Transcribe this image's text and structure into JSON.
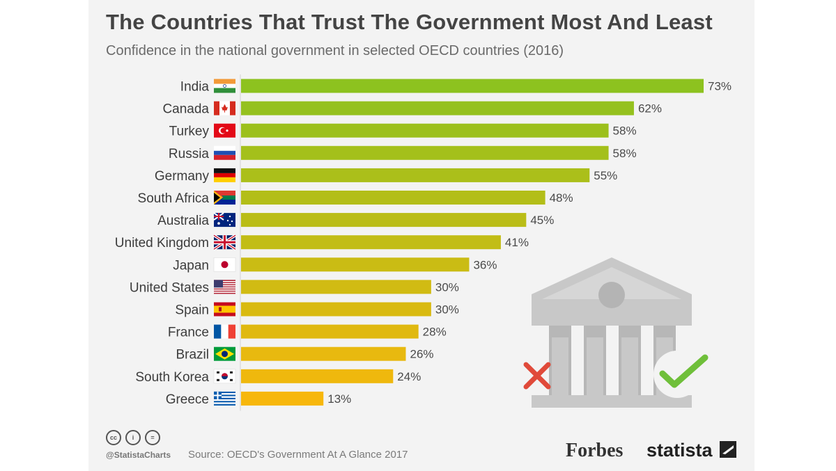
{
  "header": {
    "title": "The Countries That Trust The Government Most And Least",
    "subtitle": "Confidence in the national government in selected OECD countries (2016)"
  },
  "footer": {
    "handle": "@StatistaCharts",
    "source": "Source: OECD's Government At A Glance 2017",
    "cc_icons": [
      "cc",
      "i",
      "="
    ],
    "brand_forbes": "Forbes",
    "brand_statista": "statista"
  },
  "colors": {
    "card_background": "#f3f3f3",
    "bar_top": "#8dc21f",
    "bar_bottom": "#f7b70c",
    "illustration_gray": "#c8c8c8",
    "cross_red": "#e04a3a",
    "check_green": "#6fbf3a"
  },
  "chart_data": {
    "type": "bar",
    "orientation": "horizontal",
    "title": "The Countries That Trust The Government Most And Least",
    "subtitle": "Confidence in the national government in selected OECD countries (2016)",
    "unit": "%",
    "xlim": [
      0,
      73
    ],
    "grid": false,
    "categories": [
      "India",
      "Canada",
      "Turkey",
      "Russia",
      "Germany",
      "South Africa",
      "Australia",
      "United Kingdom",
      "Japan",
      "United States",
      "Spain",
      "France",
      "Brazil",
      "South Korea",
      "Greece"
    ],
    "values": [
      73,
      62,
      58,
      58,
      55,
      48,
      45,
      41,
      36,
      30,
      30,
      28,
      26,
      24,
      13
    ],
    "value_labels": [
      "73%",
      "62%",
      "58%",
      "58%",
      "55%",
      "48%",
      "45%",
      "41%",
      "36%",
      "30%",
      "30%",
      "28%",
      "26%",
      "24%",
      "13%"
    ],
    "flags": [
      "india-flag-icon",
      "canada-flag-icon",
      "turkey-flag-icon",
      "russia-flag-icon",
      "germany-flag-icon",
      "south-africa-flag-icon",
      "australia-flag-icon",
      "uk-flag-icon",
      "japan-flag-icon",
      "usa-flag-icon",
      "spain-flag-icon",
      "france-flag-icon",
      "brazil-flag-icon",
      "south-korea-flag-icon",
      "greece-flag-icon"
    ]
  }
}
